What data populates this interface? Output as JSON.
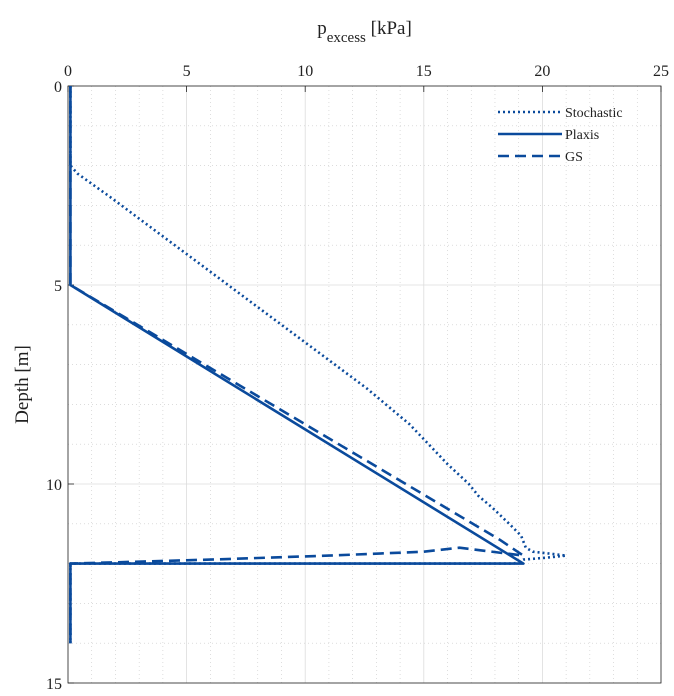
{
  "chart_data": {
    "type": "line",
    "x_axis": {
      "label_main": "p",
      "label_sub": "excess",
      "label_unit": " [kPa]",
      "position": "top",
      "range": [
        0,
        25
      ],
      "ticks": [
        0,
        5,
        10,
        15,
        20,
        25
      ],
      "tick_labels": [
        "0",
        "5",
        "10",
        "15",
        "20",
        "25"
      ]
    },
    "y_axis": {
      "label": "Depth [m]",
      "range": [
        0,
        15
      ],
      "reversed": true,
      "ticks": [
        0,
        5,
        10,
        15
      ],
      "tick_labels": [
        "0",
        "5",
        "10",
        "15"
      ]
    },
    "grid": "major and minor",
    "legend_position": "top-right",
    "series": [
      {
        "name": "Stochastic",
        "style": "dotted",
        "color": "#0a4a9c",
        "points": [
          [
            0.1,
            0
          ],
          [
            0.1,
            2
          ],
          [
            0.4,
            2.2
          ],
          [
            1.8,
            2.8
          ],
          [
            3.6,
            3.6
          ],
          [
            5.4,
            4.4
          ],
          [
            7.2,
            5.2
          ],
          [
            9,
            6
          ],
          [
            10.8,
            6.8
          ],
          [
            12.6,
            7.6
          ],
          [
            14.4,
            8.5
          ],
          [
            16,
            9.5
          ],
          [
            16.9,
            10
          ],
          [
            17.3,
            10.3
          ],
          [
            17.9,
            10.6
          ],
          [
            18.6,
            11
          ],
          [
            19.1,
            11.3
          ],
          [
            19.3,
            11.6
          ],
          [
            19.6,
            11.7
          ],
          [
            20.3,
            11.75
          ],
          [
            21,
            11.8
          ],
          [
            20.2,
            11.85
          ],
          [
            19.2,
            11.9
          ],
          [
            18.8,
            12
          ],
          [
            0.1,
            12
          ],
          [
            0.1,
            14
          ]
        ]
      },
      {
        "name": "Plaxis",
        "style": "solid",
        "color": "#0a4a9c",
        "points": [
          [
            0.1,
            0
          ],
          [
            0.1,
            5
          ],
          [
            19.2,
            12
          ],
          [
            0.1,
            12
          ],
          [
            0.1,
            14
          ]
        ]
      },
      {
        "name": "GS",
        "style": "dashed",
        "color": "#0a4a9c",
        "points": [
          [
            0.1,
            0
          ],
          [
            0.1,
            5
          ],
          [
            18.2,
            11.4
          ],
          [
            19.2,
            11.8
          ],
          [
            16.5,
            11.6
          ],
          [
            15,
            11.7
          ],
          [
            11,
            11.8
          ],
          [
            6,
            11.9
          ],
          [
            0.1,
            12
          ],
          [
            0.1,
            14
          ]
        ]
      }
    ]
  }
}
